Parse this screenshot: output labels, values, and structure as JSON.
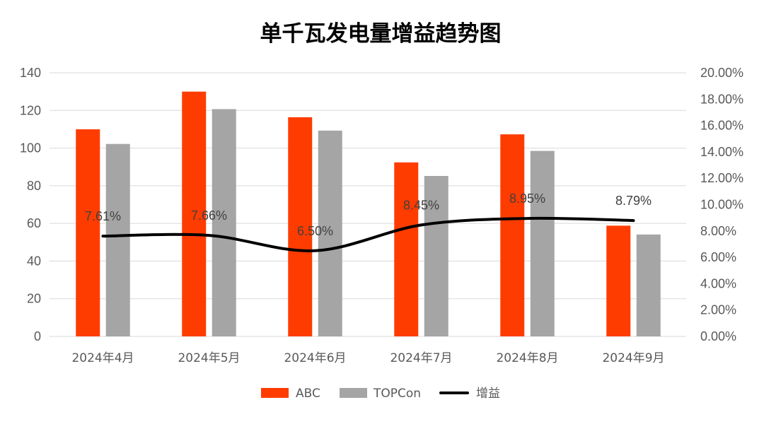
{
  "chart_data": {
    "type": "bar",
    "title": "单千瓦发电量增益趋势图",
    "categories": [
      "2024年4月",
      "2024年5月",
      "2024年6月",
      "2024年7月",
      "2024年8月",
      "2024年9月"
    ],
    "series": [
      {
        "name": "ABC",
        "type": "bar",
        "axis": "left",
        "color": "#FF3C00",
        "values": [
          110.0,
          130.0,
          116.4,
          92.4,
          107.3,
          58.8
        ]
      },
      {
        "name": "TOPCon",
        "type": "bar",
        "axis": "left",
        "color": "#A5A5A5",
        "values": [
          102.2,
          120.7,
          109.3,
          85.2,
          98.5,
          54.1
        ]
      },
      {
        "name": "增益",
        "type": "line",
        "axis": "right",
        "color": "#000000",
        "values": [
          7.61,
          7.66,
          6.5,
          8.45,
          8.95,
          8.79
        ],
        "data_labels": [
          "7.61%",
          "7.66%",
          "6.50%",
          "8.45%",
          "8.95%",
          "8.79%"
        ]
      }
    ],
    "y_left": {
      "ylim": [
        0,
        140
      ],
      "ticks": [
        0,
        20,
        40,
        60,
        80,
        100,
        120,
        140
      ]
    },
    "y_right": {
      "ylim": [
        0,
        20
      ],
      "ticks": [
        "0.00%",
        "2.00%",
        "4.00%",
        "6.00%",
        "8.00%",
        "10.00%",
        "12.00%",
        "14.00%",
        "16.00%",
        "18.00%",
        "20.00%"
      ]
    },
    "grid": true,
    "legend_position": "bottom"
  }
}
